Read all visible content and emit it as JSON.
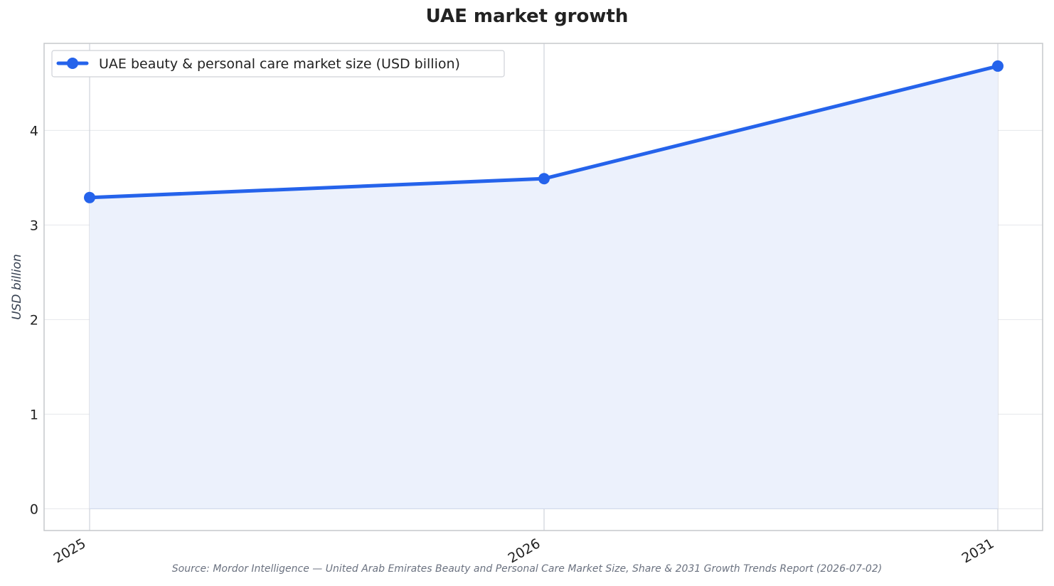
{
  "chart_data": {
    "type": "area",
    "title": "UAE market growth",
    "xlabel": "",
    "ylabel": "USD billion",
    "categories": [
      "2025",
      "2026",
      "2031"
    ],
    "series": [
      {
        "name": "UAE beauty & personal care market size (USD billion)",
        "values": [
          3.29,
          3.49,
          4.68
        ]
      }
    ],
    "ylim": [
      -0.23,
      4.92
    ],
    "yticks": [
      0,
      1,
      2,
      3,
      4
    ],
    "grid": true,
    "legend_position": "top-left",
    "colors": {
      "line": "#2563eb",
      "fill": "#ecf1fc",
      "grid": "#e5e7eb",
      "vgrid": "#cfd2da",
      "axis": "#c6c8cc"
    }
  },
  "source_text": "Source: Mordor Intelligence — United Arab Emirates Beauty and Personal Care Market Size, Share & 2031 Growth Trends Report (2026-07-02)"
}
